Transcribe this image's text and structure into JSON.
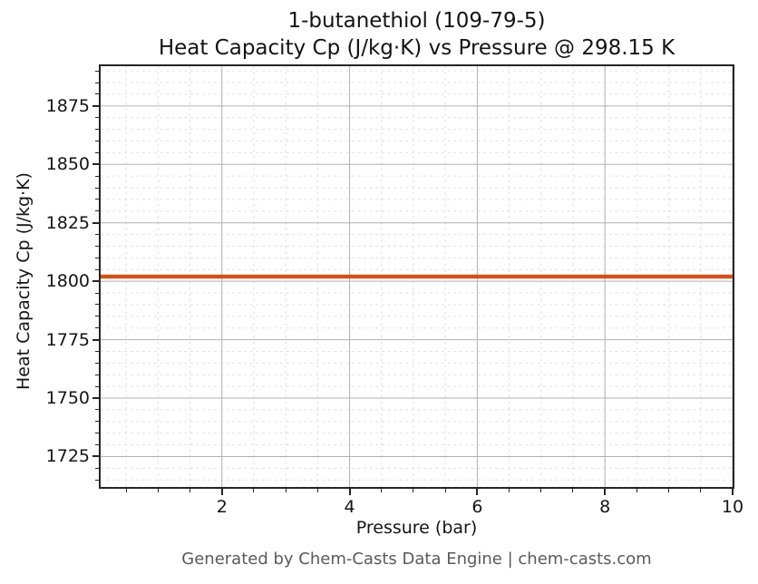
{
  "footer": {
    "text": "Generated by Chem-Casts Data Engine | chem-casts.com"
  },
  "chart_data": {
    "type": "line",
    "title": "1-butanethiol (109-79-5)",
    "subtitle": "Heat Capacity Cp (J/kg·K) vs Pressure @ 298.15 K",
    "xlabel": "Pressure (bar)",
    "ylabel": "Heat Capacity Cp (J/kg·K)",
    "xlim": [
      0.1,
      10
    ],
    "ylim": [
      1712,
      1892
    ],
    "x_major_ticks": [
      2,
      4,
      6,
      8,
      10
    ],
    "x_minor_step": 0.5,
    "y_major_ticks": [
      1725,
      1750,
      1775,
      1800,
      1825,
      1850,
      1875
    ],
    "y_minor_step": 5,
    "grid": {
      "major_color": "#b0b0b0",
      "minor_color": "#dedede",
      "minor_dash": "2.5 4.1",
      "major_on": true,
      "minor_on": true
    },
    "axis_color": "#252525",
    "legend": "none",
    "series": [
      {
        "name": "Heat Capacity Cp",
        "color": "#d1521f",
        "line_width": 4.5,
        "x": [
          0.1,
          10
        ],
        "y": [
          1802,
          1802
        ]
      }
    ]
  }
}
